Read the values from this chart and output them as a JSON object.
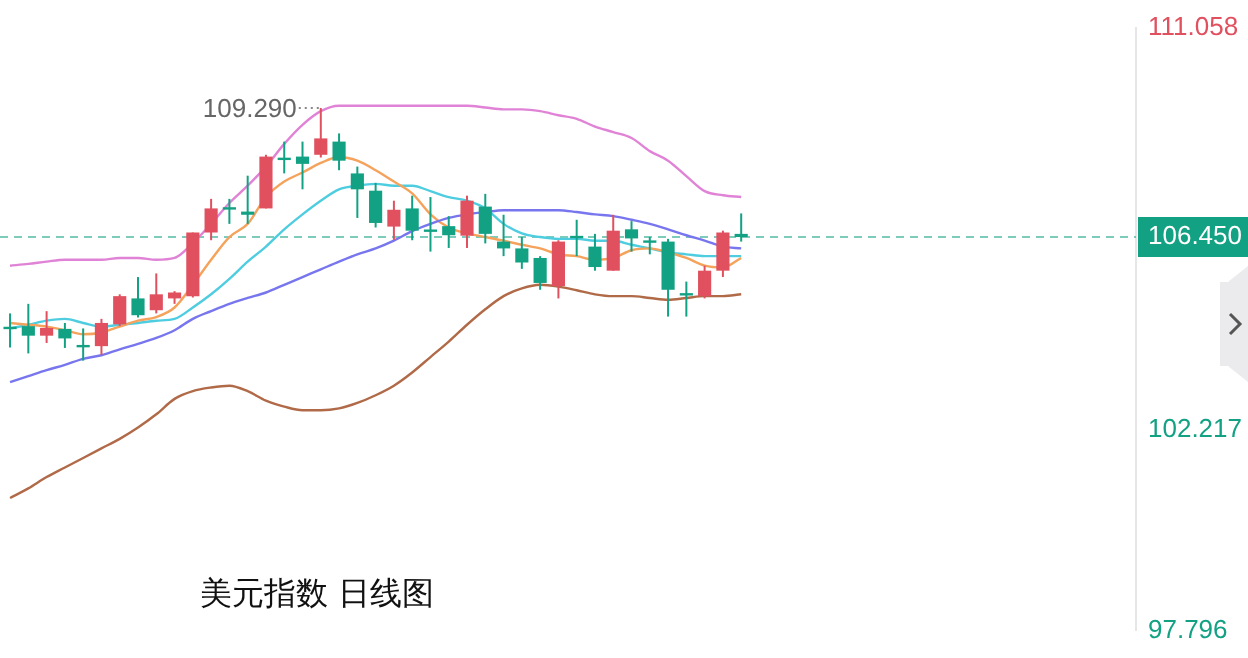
{
  "chart_data": {
    "type": "candlestick",
    "title": "美元指数 日线图",
    "categories": [
      null,
      null,
      null,
      null,
      null,
      null,
      null,
      null,
      null,
      null,
      null,
      null,
      null,
      null,
      null,
      null,
      null,
      null,
      null,
      null,
      null,
      null,
      null,
      null,
      null,
      null,
      null,
      null,
      null,
      null,
      null,
      null,
      null,
      null,
      null,
      null,
      null,
      null,
      null,
      null,
      null
    ],
    "ohlc": [
      [
        104.45,
        104.77,
        104.02,
        104.45
      ],
      [
        104.49,
        104.98,
        103.89,
        104.28
      ],
      [
        104.28,
        104.82,
        104.12,
        104.45
      ],
      [
        104.43,
        104.56,
        104.01,
        104.22
      ],
      [
        104.05,
        104.44,
        103.73,
        104.05
      ],
      [
        104.05,
        104.65,
        103.86,
        104.56
      ],
      [
        104.53,
        105.19,
        104.49,
        105.15
      ],
      [
        105.1,
        105.57,
        104.68,
        104.73
      ],
      [
        104.84,
        105.65,
        104.77,
        105.19
      ],
      [
        105.1,
        105.26,
        104.98,
        105.23
      ],
      [
        105.15,
        106.55,
        105.12,
        106.55
      ],
      [
        106.55,
        107.29,
        106.38,
        107.08
      ],
      [
        107.08,
        107.29,
        106.74,
        107.08
      ],
      [
        107.01,
        107.8,
        106.74,
        106.94
      ],
      [
        107.08,
        108.26,
        107.08,
        108.22
      ],
      [
        108.17,
        108.55,
        107.85,
        108.17
      ],
      [
        108.22,
        108.55,
        107.5,
        108.06
      ],
      [
        108.26,
        109.29,
        108.2,
        108.62
      ],
      [
        108.55,
        108.73,
        107.92,
        108.13
      ],
      [
        107.85,
        108.0,
        106.87,
        107.5
      ],
      [
        107.47,
        107.64,
        106.66,
        106.76
      ],
      [
        106.68,
        107.25,
        106.39,
        107.05
      ],
      [
        107.08,
        107.36,
        106.38,
        106.59
      ],
      [
        106.59,
        107.33,
        106.13,
        106.59
      ],
      [
        106.69,
        106.91,
        106.21,
        106.49
      ],
      [
        106.48,
        107.36,
        106.21,
        107.25
      ],
      [
        107.12,
        107.4,
        106.31,
        106.52
      ],
      [
        106.35,
        106.94,
        106.03,
        106.2
      ],
      [
        106.2,
        106.45,
        105.75,
        105.89
      ],
      [
        105.99,
        106.03,
        105.29,
        105.44
      ],
      [
        105.37,
        106.38,
        105.1,
        106.35
      ],
      [
        106.45,
        106.83,
        106.03,
        106.45
      ],
      [
        106.24,
        106.52,
        105.71,
        105.79
      ],
      [
        105.71,
        106.94,
        105.71,
        106.59
      ],
      [
        106.62,
        106.8,
        106.13,
        106.42
      ],
      [
        106.35,
        106.45,
        106.07,
        106.35
      ],
      [
        106.35,
        106.41,
        104.7,
        105.29
      ],
      [
        105.19,
        105.47,
        104.7,
        105.19
      ],
      [
        105.15,
        105.82,
        105.1,
        105.71
      ],
      [
        105.71,
        106.59,
        105.57,
        106.55
      ],
      [
        106.52,
        106.97,
        106.35,
        106.45
      ]
    ],
    "colors": [
      "#13a184",
      "#13a184",
      "#e0505f",
      "#13a184",
      "#13a184",
      "#e0505f",
      "#e0505f",
      "#13a184",
      "#e0505f",
      "#e0505f",
      "#e0505f",
      "#e0505f",
      "#13a184",
      "#13a184",
      "#e0505f",
      "#13a184",
      "#13a184",
      "#e0505f",
      "#13a184",
      "#13a184",
      "#13a184",
      "#e0505f",
      "#13a184",
      "#13a184",
      "#13a184",
      "#e0505f",
      "#13a184",
      "#13a184",
      "#13a184",
      "#13a184",
      "#e0505f",
      "#13a184",
      "#13a184",
      "#e0505f",
      "#13a184",
      "#13a184",
      "#13a184",
      "#13a184",
      "#e0505f",
      "#e0505f",
      "#13a184"
    ],
    "series": [
      {
        "type": "line",
        "color": "#e083d6",
        "values": [
          105.82,
          105.86,
          105.91,
          105.95,
          105.95,
          105.95,
          105.99,
          105.99,
          105.95,
          105.99,
          106.32,
          106.74,
          107.2,
          107.58,
          108.0,
          108.5,
          108.92,
          109.22,
          109.34,
          109.34,
          109.34,
          109.34,
          109.34,
          109.34,
          109.34,
          109.34,
          109.3,
          109.26,
          109.26,
          109.22,
          109.13,
          109.05,
          108.88,
          108.76,
          108.63,
          108.34,
          108.13,
          107.79,
          107.46,
          107.37,
          107.33
        ]
      },
      {
        "type": "line",
        "color": "#7876ee",
        "values": [
          103.26,
          103.39,
          103.52,
          103.64,
          103.77,
          103.85,
          103.98,
          104.1,
          104.23,
          104.4,
          104.65,
          104.82,
          104.98,
          105.11,
          105.23,
          105.4,
          105.57,
          105.74,
          105.91,
          106.07,
          106.2,
          106.37,
          106.58,
          106.74,
          106.87,
          106.95,
          107.0,
          107.04,
          107.04,
          107.04,
          107.04,
          107.0,
          106.95,
          106.91,
          106.83,
          106.74,
          106.62,
          106.49,
          106.37,
          106.24,
          106.2
        ]
      },
      {
        "type": "line",
        "color": "#b06a48",
        "values": [
          100.71,
          100.92,
          101.17,
          101.38,
          101.59,
          101.8,
          102.01,
          102.26,
          102.55,
          102.89,
          103.06,
          103.14,
          103.18,
          103.06,
          102.85,
          102.72,
          102.64,
          102.64,
          102.68,
          102.8,
          102.97,
          103.18,
          103.47,
          103.81,
          104.15,
          104.52,
          104.86,
          105.15,
          105.32,
          105.4,
          105.36,
          105.28,
          105.19,
          105.15,
          105.15,
          105.11,
          105.07,
          105.11,
          105.15,
          105.15,
          105.19
        ]
      },
      {
        "type": "line",
        "color": "#f5a35c",
        "values": [
          104.56,
          104.52,
          104.48,
          104.4,
          104.31,
          104.35,
          104.48,
          104.61,
          104.69,
          104.9,
          105.4,
          105.95,
          106.45,
          106.74,
          107.33,
          107.67,
          107.87,
          108.08,
          108.21,
          108.13,
          107.92,
          107.67,
          107.41,
          106.95,
          106.66,
          106.53,
          106.45,
          106.37,
          106.28,
          106.2,
          106.07,
          106.03,
          105.95,
          105.99,
          106.16,
          106.2,
          106.11,
          105.99,
          105.82,
          105.78,
          105.99
        ]
      },
      {
        "type": "line",
        "color": "#4fcde0",
        "values": [
          104.44,
          104.52,
          104.61,
          104.65,
          104.56,
          104.48,
          104.52,
          104.56,
          104.61,
          104.65,
          104.9,
          105.19,
          105.53,
          105.91,
          106.24,
          106.62,
          106.95,
          107.25,
          107.5,
          107.58,
          107.62,
          107.58,
          107.58,
          107.46,
          107.33,
          107.25,
          107.08,
          106.74,
          106.53,
          106.45,
          106.41,
          106.41,
          106.37,
          106.37,
          106.28,
          106.2,
          106.11,
          106.07,
          106.03,
          106.03,
          106.03
        ]
      }
    ],
    "ylim": [
      97.796,
      111.058
    ],
    "yticks": [
      97.796,
      102.217,
      111.058
    ],
    "ref_lines": [
      {
        "axis": "y",
        "value": 106.45,
        "label": "106.450",
        "color": "#13a184",
        "line_style": "dashed"
      }
    ],
    "annotations": [
      "109.290"
    ],
    "tick_labels": "y",
    "marker": "none",
    "line_style": "solid"
  }
}
